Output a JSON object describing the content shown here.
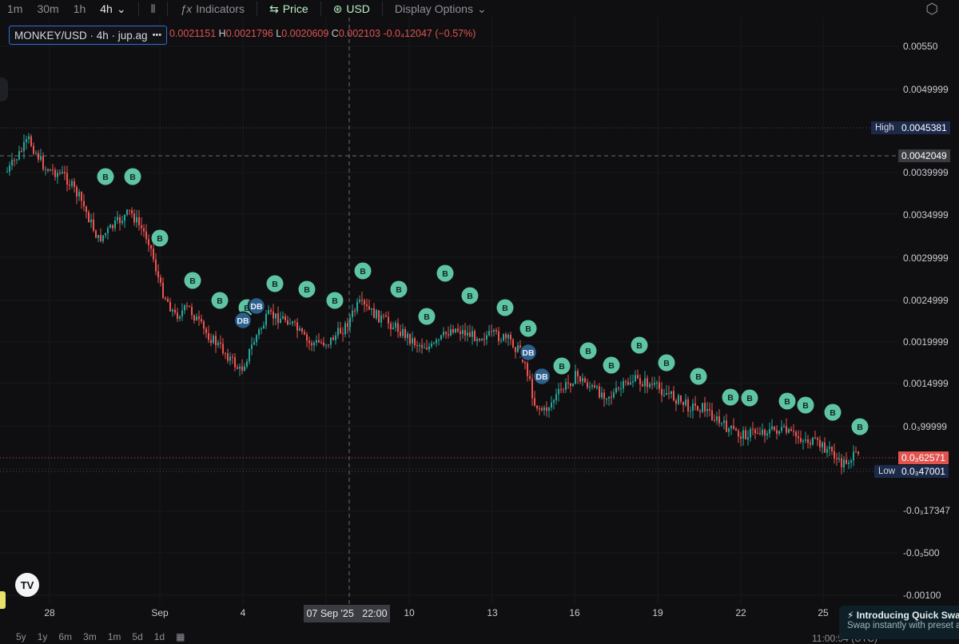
{
  "toolbar": {
    "timeframes": [
      "1m",
      "30m",
      "1h",
      "4h"
    ],
    "active_timeframe": "4h",
    "indicators_label": "Indicators",
    "price_label": "Price",
    "currency_label": "USD",
    "display_options_label": "Display Options"
  },
  "symbol": {
    "label": "MONKEY/USD · 4h · jup.ag",
    "more": "•••"
  },
  "ohlc": {
    "o_value": "0.0021151",
    "h_key": "H",
    "h_value": "0.0021796",
    "l_key": "L",
    "l_value": "0.0020609",
    "c_key": "C",
    "c_value": "0.002103",
    "change": "-0.0₄12047 (−0.57%)"
  },
  "price_axis": {
    "labels": [
      "0.00550",
      "0.0049999",
      "0.0039999",
      "0.0034999",
      "0.0029999",
      "0.0024999",
      "0.0019999",
      "0.0014999",
      "0.0₃99999",
      "-0.0₃17347",
      "-0.0₃500",
      "-0.00100"
    ],
    "high_label": "High",
    "high_value": "0.0045381",
    "crosshair_value": "0.0042049",
    "current_value": "0.0₃62571",
    "low_label": "Low",
    "low_value": "0.0₃47001"
  },
  "time_axis": {
    "labels": [
      "28",
      "Sep",
      "4",
      "10",
      "13",
      "16",
      "19",
      "22",
      "25"
    ],
    "crosshair_date": "07 Sep '25",
    "crosshair_time": "22:00"
  },
  "range_buttons": [
    "5y",
    "1y",
    "6m",
    "3m",
    "1m",
    "5d",
    "1d"
  ],
  "clock": "11:00:54 (UTC)",
  "toast": {
    "title": "Introducing Quick Swap",
    "subtitle": "Swap instantly with preset a"
  },
  "logo_text": "TV",
  "colors": {
    "up": "#26a69a",
    "down": "#ef5350",
    "buy_marker": "#5fc4a4",
    "dca_marker": "#2c5f8a",
    "current_price_tag": "#e0534f",
    "accent": "#2f6fd6"
  },
  "chart_data": {
    "type": "candlestick",
    "symbol": "MONKEY/USD",
    "interval": "4h",
    "markers": [
      {
        "label": "B"
      },
      {
        "label": "B"
      },
      {
        "label": "B"
      },
      {
        "label": "B"
      },
      {
        "label": "B"
      },
      {
        "label": "B"
      },
      {
        "label": "B"
      },
      {
        "label": "B"
      },
      {
        "label": "B"
      },
      {
        "label": "B"
      },
      {
        "label": "B"
      },
      {
        "label": "B"
      },
      {
        "label": "B"
      },
      {
        "label": "B"
      },
      {
        "label": "B"
      },
      {
        "label": "B"
      },
      {
        "label": "B"
      },
      {
        "label": "B"
      },
      {
        "label": "B"
      },
      {
        "label": "B"
      },
      {
        "label": "B"
      },
      {
        "label": "B"
      },
      {
        "label": "B"
      },
      {
        "label": "B"
      },
      {
        "label": "B"
      },
      {
        "label": "B"
      },
      {
        "label": "B"
      },
      {
        "label": "B"
      },
      {
        "label": "B"
      },
      {
        "label": "DB"
      },
      {
        "label": "DB"
      },
      {
        "label": "DB"
      },
      {
        "label": "DB"
      }
    ]
  }
}
